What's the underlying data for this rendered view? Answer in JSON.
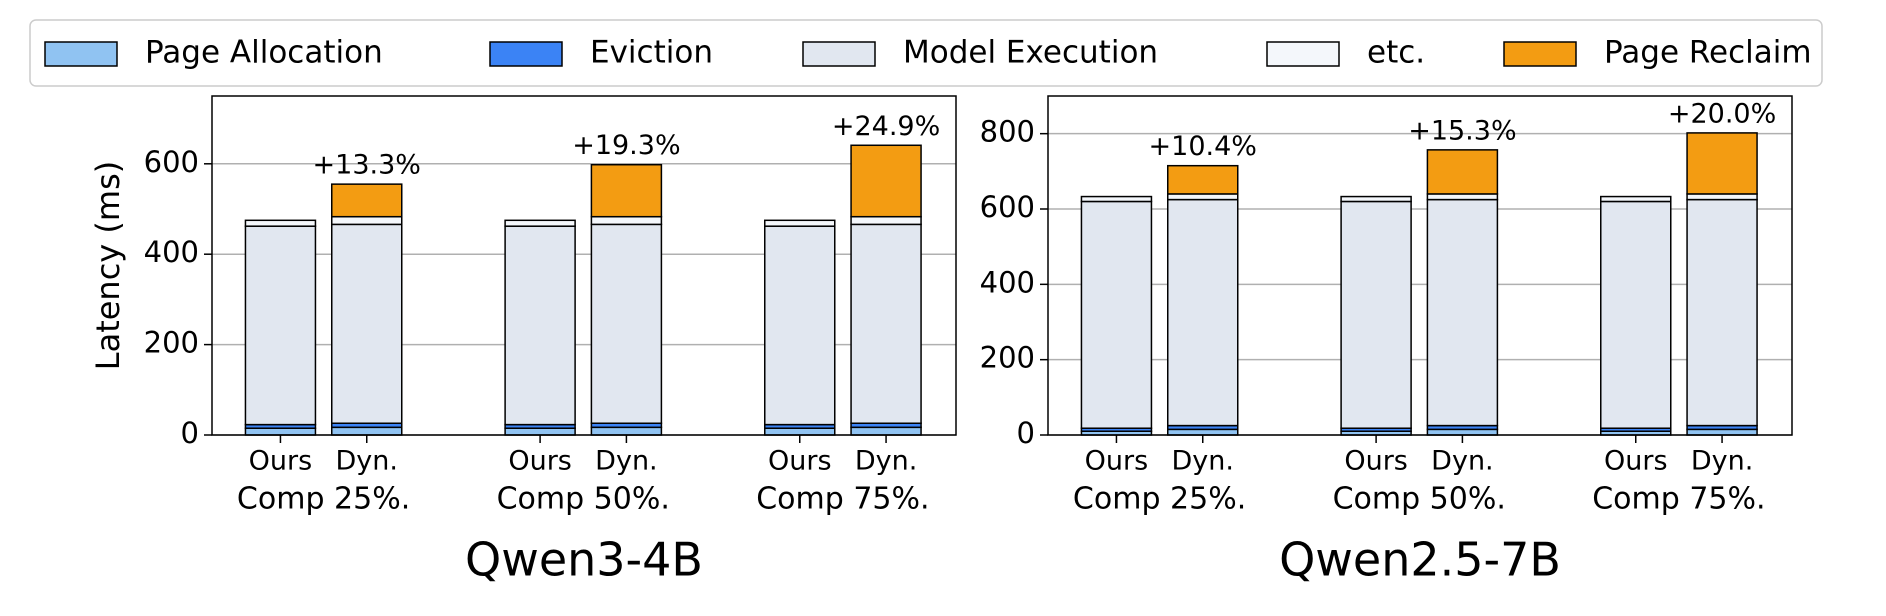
{
  "chart_data": [
    {
      "type": "bar",
      "stacked": true,
      "title": "Qwen3-4B",
      "ylabel": "Latency (ms)",
      "categories": [
        "Ours",
        "Dyn.",
        "Ours",
        "Dyn.",
        "Ours",
        "Dyn."
      ],
      "groups": [
        "Comp 25%.",
        "Comp 50%.",
        "Comp 75%."
      ],
      "series": [
        {
          "name": "Page Allocation",
          "color": "#90c3f2",
          "values": [
            15,
            17,
            15,
            17,
            15,
            17
          ]
        },
        {
          "name": "Eviction",
          "color": "#3b83f5",
          "values": [
            8,
            9,
            8,
            9,
            8,
            9
          ]
        },
        {
          "name": "Model Execution",
          "color": "#e1e7f0",
          "values": [
            439,
            440,
            439,
            440,
            439,
            440
          ]
        },
        {
          "name": "etc.",
          "color": "#f4f7fb",
          "values": [
            13,
            17,
            13,
            17,
            13,
            17
          ]
        },
        {
          "name": "Page Reclaim",
          "color": "#f39c12",
          "values": [
            0,
            72,
            0,
            115,
            0,
            158
          ]
        }
      ],
      "annotations": [
        null,
        "+13.3%",
        null,
        "+19.3%",
        null,
        "+24.9%"
      ],
      "ylim": [
        0,
        750
      ],
      "yticks": [
        0,
        200,
        400,
        600
      ],
      "grid": true
    },
    {
      "type": "bar",
      "stacked": true,
      "title": "Qwen2.5-7B",
      "categories": [
        "Ours",
        "Dyn.",
        "Ours",
        "Dyn.",
        "Ours",
        "Dyn."
      ],
      "groups": [
        "Comp 25%.",
        "Comp 50%.",
        "Comp 75%."
      ],
      "series": [
        {
          "values": [
            10,
            15,
            10,
            15,
            10,
            15
          ]
        },
        {
          "values": [
            8,
            10,
            8,
            10,
            8,
            10
          ]
        },
        {
          "values": [
            602,
            600,
            602,
            600,
            602,
            600
          ]
        },
        {
          "values": [
            13,
            15,
            13,
            15,
            13,
            15
          ]
        },
        {
          "values": [
            0,
            75,
            0,
            117,
            0,
            162
          ]
        }
      ],
      "annotations": [
        null,
        "+10.4%",
        null,
        "+15.3%",
        null,
        "+20.0%"
      ],
      "ylim": [
        0,
        900
      ],
      "yticks": [
        0,
        200,
        400,
        600,
        800
      ],
      "grid": true
    }
  ]
}
